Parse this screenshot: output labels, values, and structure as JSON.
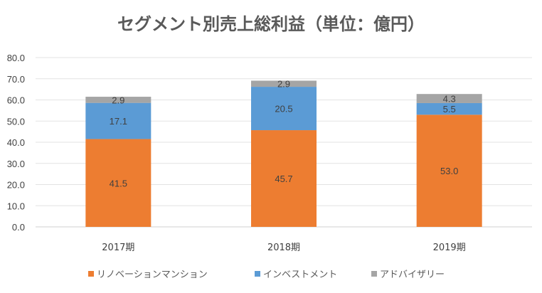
{
  "chart_data": {
    "type": "bar",
    "stacked": true,
    "title": "セグメント別売上総利益（単位：億円）",
    "categories": [
      "2017期",
      "2018期",
      "2019期"
    ],
    "series": [
      {
        "name": "リノベーションマンション",
        "values": [
          41.5,
          45.7,
          53.0
        ],
        "labels": [
          "41.5",
          "45.7",
          "53.0"
        ],
        "color": "#ED7D31"
      },
      {
        "name": "インベストメント",
        "values": [
          17.1,
          20.5,
          5.5
        ],
        "labels": [
          "17.1",
          "20.5",
          "5.5"
        ],
        "color": "#5B9BD5"
      },
      {
        "name": "アドバイザリー",
        "values": [
          2.9,
          2.9,
          4.3
        ],
        "labels": [
          "2.9",
          "2.9",
          "4.3"
        ],
        "color": "#A5A5A5"
      }
    ],
    "ylim": [
      0,
      80
    ],
    "yticks": [
      "0.0",
      "10.0",
      "20.0",
      "30.0",
      "40.0",
      "50.0",
      "60.0",
      "70.0",
      "80.0"
    ],
    "grid": true,
    "legend": "bottom"
  }
}
